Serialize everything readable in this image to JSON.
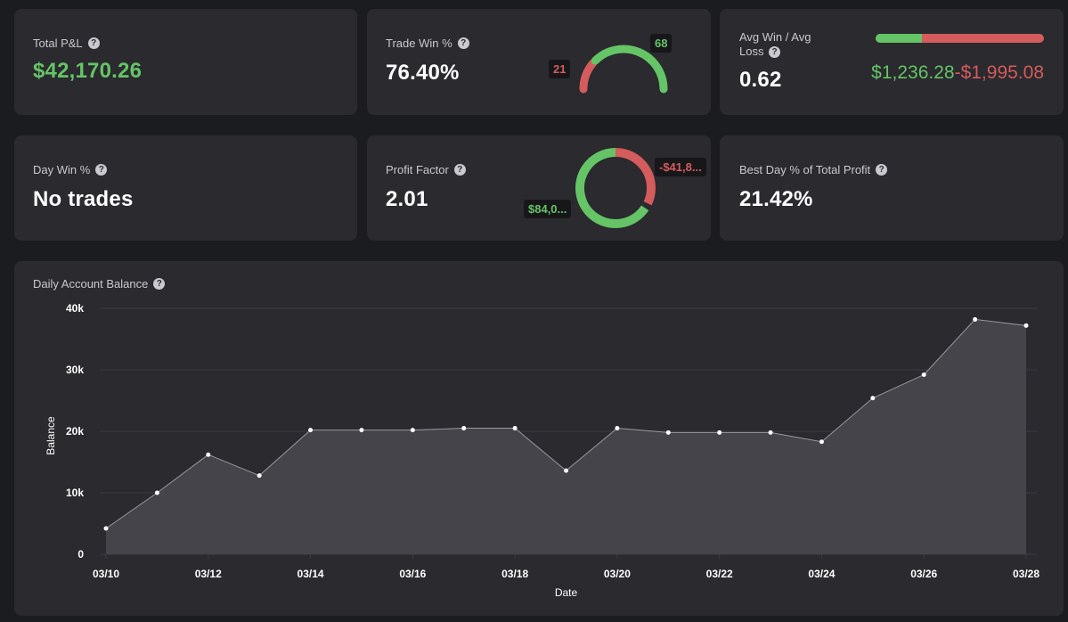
{
  "colors": {
    "background": "#1b1c20",
    "card": "#2a2a2f",
    "positive": "#65c466",
    "negative": "#d45c5c",
    "area_fill": "#45444a",
    "line": "#9a99a0",
    "grid": "#3b3b41"
  },
  "help_icon": "question-circle-icon",
  "cards": {
    "total_pnl": {
      "label": "Total P&L",
      "value": "$42,170.26"
    },
    "trade_win": {
      "label": "Trade Win %",
      "value": "76.40%",
      "wins": 68,
      "losses": 21,
      "wins_text": "68",
      "losses_text": "21"
    },
    "avg_win_loss": {
      "label": "Avg Win / Avg Loss",
      "value": "0.62",
      "avg_win": "$1,236.28",
      "avg_loss": "-$1,995.08",
      "win_fraction": 0.277
    },
    "day_win": {
      "label": "Day Win %",
      "value": "No trades"
    },
    "profit_factor": {
      "label": "Profit Factor",
      "value": "2.01",
      "profit_label": "$84,0...",
      "loss_label": "-$41,8...",
      "gross_profit": 84000,
      "gross_loss": 41830
    },
    "best_day": {
      "label": "Best Day % of Total Profit",
      "value": "21.42%"
    }
  },
  "balance_chart": {
    "title": "Daily Account Balance"
  },
  "chart_data": {
    "type": "area",
    "title": "Daily Account Balance",
    "xlabel": "Date",
    "ylabel": "Balance",
    "x": [
      "03/10",
      "03/11",
      "03/12",
      "03/13",
      "03/14",
      "03/15",
      "03/16",
      "03/17",
      "03/18",
      "03/19",
      "03/20",
      "03/21",
      "03/22",
      "03/23",
      "03/24",
      "03/25",
      "03/26",
      "03/27",
      "03/28"
    ],
    "x_ticks": [
      "03/10",
      "03/12",
      "03/14",
      "03/16",
      "03/18",
      "03/20",
      "03/22",
      "03/24",
      "03/26",
      "03/28"
    ],
    "y_ticks": [
      "0",
      "10k",
      "20k",
      "30k",
      "40k"
    ],
    "ylim": [
      0,
      40000
    ],
    "grid": true,
    "series": [
      {
        "values": [
          4200,
          10000,
          16200,
          12800,
          20200,
          20200,
          20200,
          20500,
          20500,
          13600,
          20500,
          19800,
          19800,
          19800,
          18300,
          25400,
          29200,
          38200,
          37200
        ]
      }
    ]
  }
}
